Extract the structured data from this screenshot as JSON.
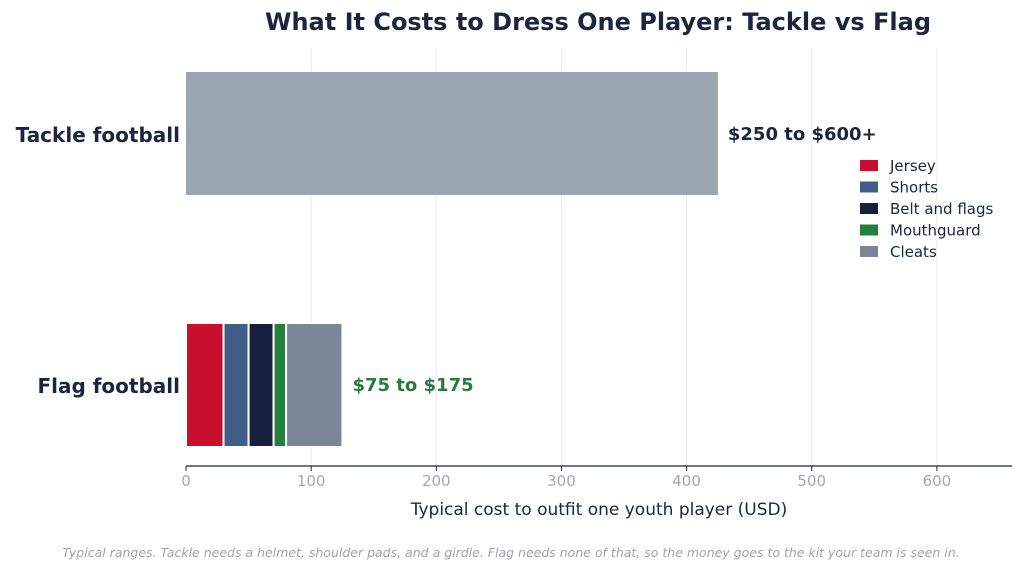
{
  "chart_data": {
    "type": "bar",
    "orientation": "horizontal",
    "stacked": true,
    "title": "What It Costs to Dress One Player: Tackle vs Flag",
    "xlabel": "Typical cost to outfit one youth player (USD)",
    "ylabel": "",
    "xlim": [
      0,
      660
    ],
    "xticks": [
      0,
      100,
      200,
      300,
      400,
      500,
      600
    ],
    "grid": "vertical",
    "legend_position": "right",
    "categories": [
      "Tackle football",
      "Flag football"
    ],
    "tackle": {
      "value": 425,
      "color": "#9aa6b2",
      "range_label": "$250 to $600+",
      "label_color": "#1b2540"
    },
    "flag": {
      "range_label": "$75 to $175",
      "label_color": "#2a7a3b",
      "segments": [
        {
          "name": "Jersey",
          "value": 30,
          "color": "#c8102e"
        },
        {
          "name": "Shorts",
          "value": 20,
          "color": "#3f5d87"
        },
        {
          "name": "Belt and flags",
          "value": 20,
          "color": "#16223d"
        },
        {
          "name": "Mouthguard",
          "value": 10,
          "color": "#23803a"
        },
        {
          "name": "Cleats",
          "value": 45,
          "color": "#7a8698"
        }
      ]
    },
    "footnote": "Typical ranges. Tackle needs a helmet, shoulder pads, and a girdle. Flag needs none of that, so the money goes to the kit your team is seen in."
  }
}
